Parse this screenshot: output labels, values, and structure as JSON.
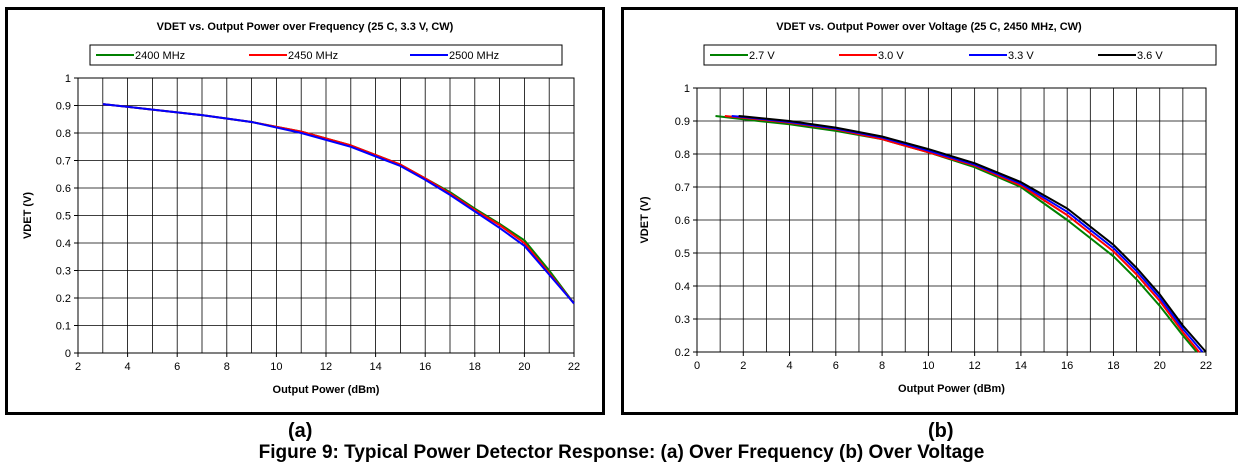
{
  "chart_data": [
    {
      "type": "line",
      "title": "VDET vs. Output Power over Frequency (25 C, 3.3 V, CW)",
      "xlabel": "Output Power (dBm)",
      "ylabel": "VDET (V)",
      "xlim": [
        2,
        22
      ],
      "ylim": [
        0,
        1
      ],
      "xticks": [
        2,
        4,
        6,
        8,
        10,
        12,
        14,
        16,
        18,
        20,
        22
      ],
      "yticks": [
        0,
        0.1,
        0.2,
        0.3,
        0.4,
        0.5,
        0.6,
        0.7,
        0.8,
        0.9,
        1
      ],
      "grid": true,
      "legend_position": "top",
      "series": [
        {
          "name": "2400 MHz",
          "color": "#008000",
          "x": [
            3,
            5,
            7,
            9,
            11,
            13,
            15,
            16,
            17,
            18,
            19,
            20,
            21,
            22
          ],
          "y": [
            0.905,
            0.885,
            0.865,
            0.84,
            0.805,
            0.755,
            0.685,
            0.635,
            0.585,
            0.525,
            0.47,
            0.41,
            0.3,
            0.18
          ]
        },
        {
          "name": "2450 MHz",
          "color": "#ff0000",
          "x": [
            3,
            5,
            7,
            9,
            11,
            13,
            15,
            16,
            17,
            18,
            19,
            20,
            21,
            22
          ],
          "y": [
            0.905,
            0.885,
            0.865,
            0.84,
            0.805,
            0.755,
            0.685,
            0.635,
            0.58,
            0.52,
            0.465,
            0.4,
            0.29,
            0.18
          ]
        },
        {
          "name": "2500 MHz",
          "color": "#0000ff",
          "x": [
            3,
            5,
            7,
            9,
            11,
            13,
            15,
            16,
            17,
            18,
            19,
            20,
            21,
            22
          ],
          "y": [
            0.905,
            0.885,
            0.865,
            0.84,
            0.8,
            0.75,
            0.68,
            0.63,
            0.575,
            0.515,
            0.455,
            0.39,
            0.285,
            0.18
          ]
        }
      ]
    },
    {
      "type": "line",
      "title": "VDET vs. Output Power over Voltage (25 C, 2450 MHz, CW)",
      "xlabel": "Output Power (dBm)",
      "ylabel": "VDET (V)",
      "xlim": [
        0,
        22
      ],
      "ylim": [
        0.2,
        1
      ],
      "xticks": [
        0,
        2,
        4,
        6,
        8,
        10,
        12,
        14,
        16,
        18,
        20,
        22
      ],
      "yticks": [
        0.2,
        0.3,
        0.4,
        0.5,
        0.6,
        0.7,
        0.8,
        0.9,
        1
      ],
      "grid": true,
      "legend_position": "top",
      "series": [
        {
          "name": "2.7 V",
          "color": "#008000",
          "x": [
            0.8,
            2,
            4,
            6,
            8,
            10,
            12,
            14,
            16,
            18,
            19,
            20,
            21,
            21.6
          ],
          "y": [
            0.915,
            0.905,
            0.89,
            0.87,
            0.845,
            0.805,
            0.76,
            0.7,
            0.6,
            0.49,
            0.42,
            0.34,
            0.25,
            0.2
          ]
        },
        {
          "name": "3.0 V",
          "color": "#ff0000",
          "x": [
            1.2,
            2,
            4,
            6,
            8,
            10,
            12,
            14,
            16,
            18,
            19,
            20,
            21,
            21.7
          ],
          "y": [
            0.915,
            0.91,
            0.895,
            0.875,
            0.845,
            0.805,
            0.765,
            0.705,
            0.615,
            0.505,
            0.435,
            0.355,
            0.26,
            0.2
          ]
        },
        {
          "name": "3.3 V",
          "color": "#0000ff",
          "x": [
            1.5,
            2,
            4,
            6,
            8,
            10,
            12,
            14,
            16,
            18,
            19,
            20,
            21,
            21.85
          ],
          "y": [
            0.915,
            0.912,
            0.897,
            0.877,
            0.85,
            0.81,
            0.768,
            0.71,
            0.625,
            0.515,
            0.445,
            0.365,
            0.27,
            0.2
          ]
        },
        {
          "name": "3.6 V",
          "color": "#000000",
          "x": [
            1.8,
            2,
            4,
            6,
            8,
            10,
            12,
            14,
            16,
            18,
            19,
            20,
            21,
            22
          ],
          "y": [
            0.915,
            0.914,
            0.9,
            0.88,
            0.853,
            0.815,
            0.772,
            0.715,
            0.635,
            0.525,
            0.455,
            0.375,
            0.28,
            0.2
          ]
        }
      ]
    }
  ],
  "panel_labels": [
    "(a)",
    "(b)"
  ],
  "caption": "Figure 9:  Typical Power Detector Response:  (a) Over Frequency  (b) Over Voltage"
}
